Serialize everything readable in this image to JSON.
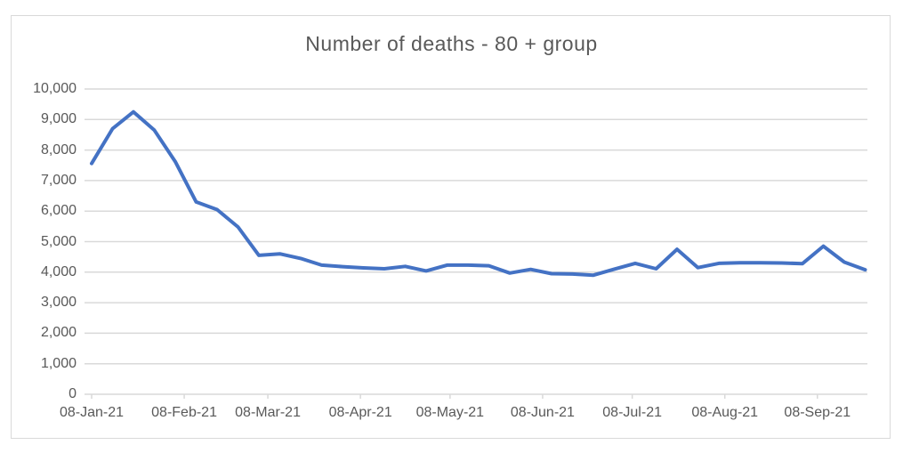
{
  "chart_data": {
    "type": "line",
    "title": "Number of deaths - 80 + group",
    "legend": "none",
    "grid": "horizontal",
    "ylim": [
      0,
      10000
    ],
    "y_ticks": [
      10000,
      9000,
      8000,
      7000,
      6000,
      5000,
      4000,
      3000,
      2000,
      1000,
      0
    ],
    "y_tick_labels": [
      "10,000",
      "9,000",
      "8,000",
      "7,000",
      "6,000",
      "5,000",
      "4,000",
      "3,000",
      "2,000",
      "1,000",
      "0"
    ],
    "x_tick_labels": [
      "08-Jan-21",
      "08-Feb-21",
      "08-Mar-21",
      "08-Apr-21",
      "08-May-21",
      "08-Jun-21",
      "08-Jul-21",
      "08-Aug-21",
      "08-Sep-21"
    ],
    "x_tick_day_offsets": [
      0,
      31,
      59,
      90,
      120,
      151,
      181,
      212,
      243
    ],
    "series": [
      {
        "name": "Number of deaths 80+",
        "color": "#4472C4",
        "x": [
          "08-Jan-21",
          "15-Jan-21",
          "22-Jan-21",
          "29-Jan-21",
          "05-Feb-21",
          "12-Feb-21",
          "19-Feb-21",
          "26-Feb-21",
          "05-Mar-21",
          "12-Mar-21",
          "19-Mar-21",
          "26-Mar-21",
          "02-Apr-21",
          "09-Apr-21",
          "16-Apr-21",
          "23-Apr-21",
          "30-Apr-21",
          "07-May-21",
          "14-May-21",
          "21-May-21",
          "28-May-21",
          "04-Jun-21",
          "11-Jun-21",
          "18-Jun-21",
          "25-Jun-21",
          "02-Jul-21",
          "09-Jul-21",
          "16-Jul-21",
          "23-Jul-21",
          "30-Jul-21",
          "06-Aug-21",
          "13-Aug-21",
          "20-Aug-21",
          "27-Aug-21",
          "03-Sep-21",
          "10-Sep-21",
          "17-Sep-21",
          "24-Sep-21"
        ],
        "values": [
          7560,
          8700,
          9250,
          8650,
          7620,
          6300,
          6050,
          5480,
          4550,
          4600,
          4450,
          4230,
          4180,
          4140,
          4110,
          4190,
          4040,
          4230,
          4230,
          4210,
          3970,
          4090,
          3950,
          3940,
          3900,
          4100,
          4290,
          4110,
          4750,
          4150,
          4290,
          4310,
          4310,
          4300,
          4280,
          4850,
          4330,
          4080
        ]
      }
    ]
  },
  "colors": {
    "line": "#4472C4",
    "gridline": "#d9d9d9",
    "axis_line": "#d9d9d9",
    "tick_mark": "#d9d9d9",
    "text": "#595959",
    "frame_border": "#d9d9d9",
    "background": "#ffffff"
  }
}
